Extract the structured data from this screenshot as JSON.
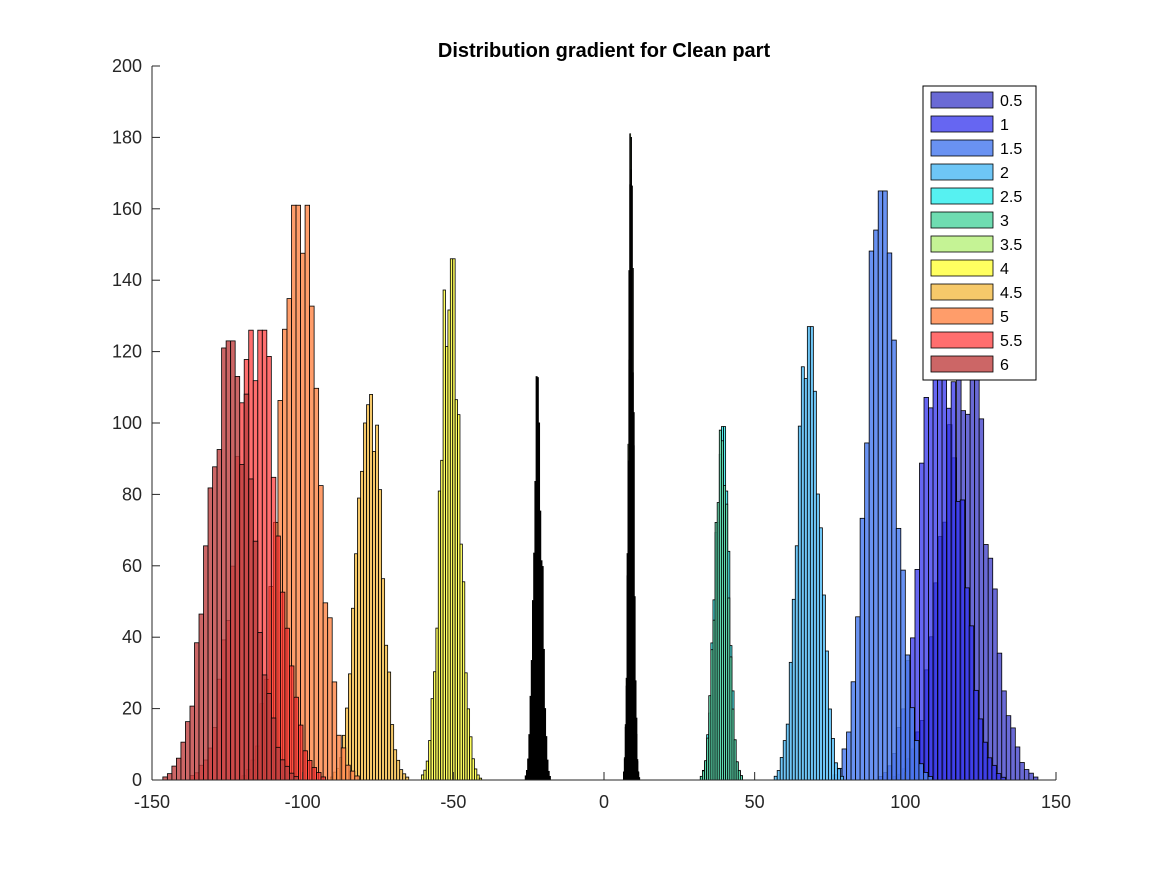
{
  "chart_data": {
    "type": "bar",
    "title": "Distribution gradient for Clean part",
    "xlabel": "",
    "ylabel": "",
    "xlim": [
      -150,
      150
    ],
    "ylim": [
      0,
      200
    ],
    "x_ticks": [
      -150,
      -100,
      -50,
      0,
      50,
      100,
      150
    ],
    "y_ticks": [
      0,
      20,
      40,
      60,
      80,
      100,
      120,
      140,
      160,
      180,
      200
    ],
    "grid": false,
    "legend_position": "top-right",
    "series": [
      {
        "name": "0.5",
        "color": "#5a5ad0",
        "opacity": 0.9,
        "edge": "#000000",
        "center": 120,
        "peak": 115,
        "sigma": 7.5,
        "bin_width": 1.5
      },
      {
        "name": "1",
        "color": "#3333ee",
        "opacity": 0.75,
        "edge": "#000000",
        "center": 112,
        "peak": 130,
        "sigma": 6.5,
        "bin_width": 1.5
      },
      {
        "name": "1.5",
        "color": "#4f7ff0",
        "opacity": 0.85,
        "edge": "#000000",
        "center": 92,
        "peak": 165,
        "sigma": 5.0,
        "bin_width": 1.5
      },
      {
        "name": "2",
        "color": "#5ec0f5",
        "opacity": 0.9,
        "edge": "#000000",
        "center": 68,
        "peak": 127,
        "sigma": 3.6,
        "bin_width": 1.0
      },
      {
        "name": "2.5",
        "color": "#44f0f0",
        "opacity": 0.9,
        "edge": "#000000",
        "center": 39,
        "peak": 99,
        "sigma": 2.2,
        "bin_width": 0.7
      },
      {
        "name": "3",
        "color": "#5fd8a8",
        "opacity": 0.9,
        "edge": "#000000",
        "center": 39,
        "peak": 98,
        "sigma": 2.2,
        "bin_width": 0.7
      },
      {
        "name": "3.5",
        "color": "#bff28a",
        "opacity": 0.9,
        "edge": "#000000",
        "center": 9,
        "peak": 181,
        "sigma": 0.8,
        "bin_width": 0.3
      },
      {
        "name": "4",
        "color": "#ffff44",
        "opacity": 0.85,
        "edge": "#000000",
        "center": -51,
        "peak": 146,
        "sigma": 3.0,
        "bin_width": 0.8
      },
      {
        "name": "4.5",
        "color": "#f5c050",
        "opacity": 0.85,
        "edge": "#000000",
        "center": -78,
        "peak": 108,
        "sigma": 4.0,
        "bin_width": 1.0
      },
      {
        "name": "5",
        "color": "#ff8c50",
        "opacity": 0.85,
        "edge": "#000000",
        "center": -101,
        "peak": 161,
        "sigma": 6.0,
        "bin_width": 1.5
      },
      {
        "name": "5.5",
        "color": "#ff3030",
        "opacity": 0.7,
        "edge": "#000000",
        "center": -115,
        "peak": 126,
        "sigma": 7.0,
        "bin_width": 1.5
      },
      {
        "name": "6",
        "color": "#bf4040",
        "opacity": 0.8,
        "edge": "#000000",
        "center": -124,
        "peak": 123,
        "sigma": 7.0,
        "bin_width": 1.5
      }
    ],
    "extra_series": [
      {
        "color": "#000000",
        "center": -22,
        "peak": 113,
        "sigma": 1.3,
        "bin_width": 0.4
      },
      {
        "color": "#000000",
        "center": 9,
        "peak": 180,
        "sigma": 0.8,
        "bin_width": 0.3
      }
    ]
  }
}
